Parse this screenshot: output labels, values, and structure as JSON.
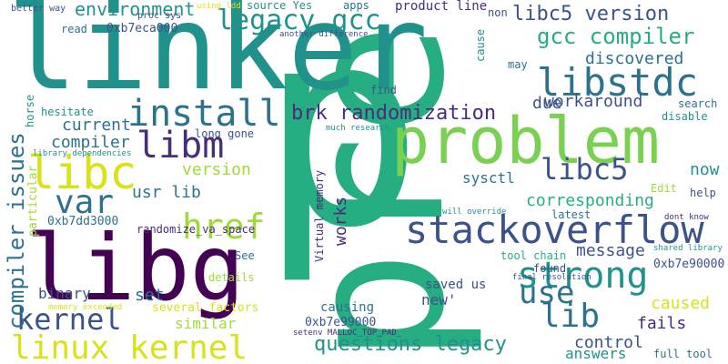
{
  "words": [
    {
      "text": "pre",
      "color": "#26ad81",
      "rot": -90
    },
    {
      "text": "p",
      "color": "#26ad81",
      "rot": 0
    },
    {
      "text": "linker",
      "color": "#21918c",
      "rot": 0
    },
    {
      "text": "libg",
      "color": "#440154",
      "rot": 0
    },
    {
      "text": "problem",
      "color": "#7ad151",
      "rot": 0
    },
    {
      "text": "stackoverflow",
      "color": "#3b528b",
      "rot": 0
    },
    {
      "text": "strong",
      "color": "#21918c",
      "rot": 0
    },
    {
      "text": "libstdc",
      "color": "#2c728e",
      "rot": 0
    },
    {
      "text": "install",
      "color": "#2c728e",
      "rot": 0
    },
    {
      "text": "libc",
      "color": "#d8e219",
      "rot": 0
    },
    {
      "text": "href",
      "color": "#a0da39",
      "rot": 0
    },
    {
      "text": "var",
      "color": "#2c728e",
      "rot": 0
    },
    {
      "text": "libm",
      "color": "#472d7b",
      "rot": 0
    },
    {
      "text": "linux kernel",
      "color": "#d8e219",
      "rot": 0
    },
    {
      "text": "kernel",
      "color": "#3b528b",
      "rot": 0
    },
    {
      "text": "use",
      "color": "#2c728e",
      "rot": 0
    },
    {
      "text": "lib",
      "color": "#2c728e",
      "rot": 0
    },
    {
      "text": "libc5",
      "color": "#3b528b",
      "rot": 0
    },
    {
      "text": "libc5 version",
      "color": "#3b528b",
      "rot": 0
    },
    {
      "text": "legacy gcc",
      "color": "#21918c",
      "rot": 0
    },
    {
      "text": "gcc compiler",
      "color": "#26ad81",
      "rot": 0
    },
    {
      "text": "brk randomization",
      "color": "#472d7b",
      "rot": 0
    },
    {
      "text": "questions legacy",
      "color": "#21918c",
      "rot": 0
    },
    {
      "text": "compiler issues",
      "color": "#2c728e",
      "rot": -90
    },
    {
      "text": "environment",
      "color": "#21918c",
      "rot": 0
    },
    {
      "text": "discovered",
      "color": "#2c728e",
      "rot": 0
    },
    {
      "text": "workaround",
      "color": "#3b528b",
      "rot": 0
    },
    {
      "text": "works",
      "color": "#472d7b",
      "rot": -90
    },
    {
      "text": "sysctl",
      "color": "#2c728e",
      "rot": 0
    },
    {
      "text": "corresponding",
      "color": "#26ad81",
      "rot": 0
    },
    {
      "text": "message",
      "color": "#3b528b",
      "rot": 0
    },
    {
      "text": "caused",
      "color": "#d8e219",
      "rot": 0
    },
    {
      "text": "control",
      "color": "#3b528b",
      "rot": 0
    },
    {
      "text": "answers",
      "color": "#21918c",
      "rot": 0
    },
    {
      "text": "fails",
      "color": "#472d7b",
      "rot": 0
    },
    {
      "text": "usr lib",
      "color": "#2c728e",
      "rot": 0
    },
    {
      "text": "current",
      "color": "#2c728e",
      "rot": 0
    },
    {
      "text": "compiler",
      "color": "#2c728e",
      "rot": 0
    },
    {
      "text": "version",
      "color": "#a0da39",
      "rot": 0
    },
    {
      "text": "now",
      "color": "#21918c",
      "rot": 0
    },
    {
      "text": "due",
      "color": "#3b528b",
      "rot": 0
    },
    {
      "text": "binary",
      "color": "#3b528b",
      "rot": 0
    },
    {
      "text": "set",
      "color": "#2c728e",
      "rot": 0
    },
    {
      "text": "similar",
      "color": "#a0da39",
      "rot": 0
    },
    {
      "text": "new'",
      "color": "#3b528b",
      "rot": 0
    },
    {
      "text": "saved us",
      "color": "#3b528b",
      "rot": 0
    },
    {
      "text": "causing",
      "color": "#2c728e",
      "rot": 0
    },
    {
      "text": "0xb7e99000",
      "color": "#3b528b",
      "rot": 0
    },
    {
      "text": "0xb7e90000",
      "color": "#3b528b",
      "rot": 0
    },
    {
      "text": "0xb7eca000",
      "color": "#3b528b",
      "rot": 0
    },
    {
      "text": "0xb7dd3000",
      "color": "#2c728e",
      "rot": 0
    },
    {
      "text": "long gone",
      "color": "#3b528b",
      "rot": 0
    },
    {
      "text": "randomize_va_space",
      "color": "#472d7b",
      "rot": 0
    },
    {
      "text": "several factors",
      "color": "#d8e219",
      "rot": 0
    },
    {
      "text": "details",
      "color": "#a0da39",
      "rot": 0
    },
    {
      "text": "See",
      "color": "#2c728e",
      "rot": 0
    },
    {
      "text": "hesitate",
      "color": "#21918c",
      "rot": 0
    },
    {
      "text": "particular",
      "color": "#a0da39",
      "rot": -90
    },
    {
      "text": "horse",
      "color": "#21918c",
      "rot": -90
    },
    {
      "text": "library dependencies",
      "color": "#21918c",
      "rot": 0
    },
    {
      "text": "memory exceeded",
      "color": "#d8e219",
      "rot": 0
    },
    {
      "text": "Virtual memory",
      "color": "#472d7b",
      "rot": -90
    },
    {
      "text": "setenv MALLOC_TOP_PAD_",
      "color": "#472d7b",
      "rot": 0
    },
    {
      "text": "tool chain",
      "color": "#26ad81",
      "rot": 0
    },
    {
      "text": "found",
      "color": "#3b528b",
      "rot": 0
    },
    {
      "text": "final resolution",
      "color": "#3b528b",
      "rot": 0
    },
    {
      "text": "full tool",
      "color": "#2c728e",
      "rot": 0
    },
    {
      "text": "shared library",
      "color": "#21918c",
      "rot": 0
    },
    {
      "text": "dont know",
      "color": "#472d7b",
      "rot": 0
    },
    {
      "text": "will override",
      "color": "#21918c",
      "rot": 0
    },
    {
      "text": "latest",
      "color": "#2c728e",
      "rot": 0
    },
    {
      "text": "Edit",
      "color": "#a0da39",
      "rot": 0
    },
    {
      "text": "help",
      "color": "#3b528b",
      "rot": 0
    },
    {
      "text": "search",
      "color": "#2c728e",
      "rot": 0
    },
    {
      "text": "disable",
      "color": "#21918c",
      "rot": 0
    },
    {
      "text": "may",
      "color": "#2c728e",
      "rot": 0
    },
    {
      "text": "cause",
      "color": "#21918c",
      "rot": -90
    },
    {
      "text": "non",
      "color": "#3b528b",
      "rot": 0
    },
    {
      "text": "product line",
      "color": "#472d7b",
      "rot": 0
    },
    {
      "text": "apps",
      "color": "#2c728e",
      "rot": 0
    },
    {
      "text": "source Yes",
      "color": "#21918c",
      "rot": 0
    },
    {
      "text": "another difference",
      "color": "#3b528b",
      "rot": 0
    },
    {
      "text": "proc sys",
      "color": "#3b528b",
      "rot": 0
    },
    {
      "text": "using ldd",
      "color": "#d8e219",
      "rot": 0
    },
    {
      "text": "better way",
      "color": "#3b528b",
      "rot": 0
    },
    {
      "text": "read",
      "color": "#2c728e",
      "rot": 0
    },
    {
      "text": "find",
      "color": "#3b528b",
      "rot": 0
    },
    {
      "text": "much research",
      "color": "#21918c",
      "rot": 0
    }
  ]
}
